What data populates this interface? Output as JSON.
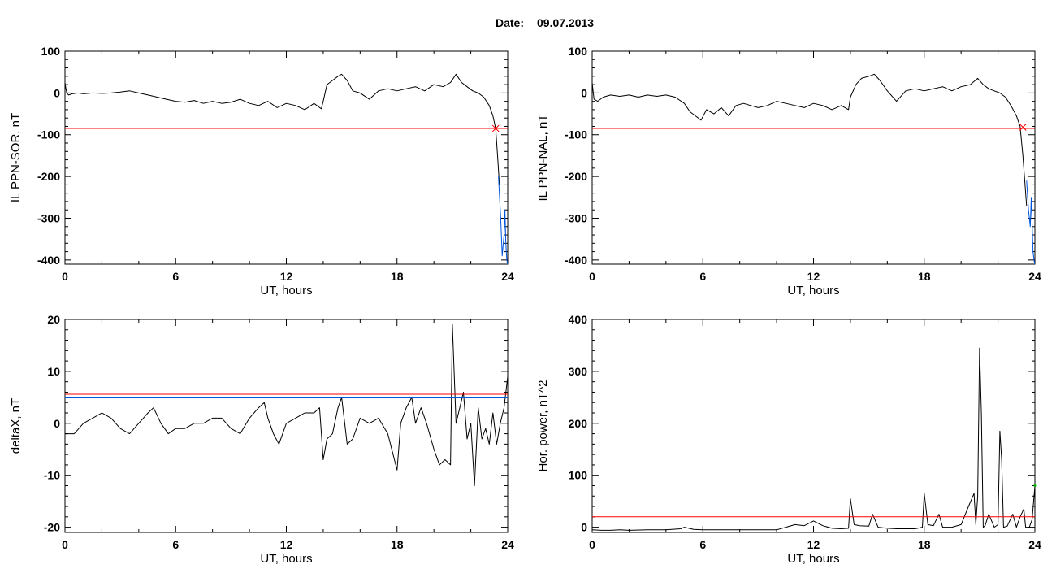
{
  "header": {
    "date_label": "Date:",
    "date_value": "09.07.2013"
  },
  "colors": {
    "signal": "#000000",
    "threshold": "#ff0000",
    "secondary": "#0055dd",
    "marker": "#ff0000",
    "point": "#00aa00"
  },
  "chart_data": [
    {
      "type": "line",
      "id": "sor",
      "xlabel": "UT, hours",
      "ylabel": "IL PPN-SOR, nT",
      "xlim": [
        0,
        24
      ],
      "ylim": [
        -410,
        100
      ],
      "xticks": [
        0,
        6,
        12,
        18,
        24
      ],
      "yticks": [
        100,
        0,
        -100,
        -200,
        -300,
        -400
      ],
      "grid": false,
      "series": [
        {
          "role": "signal",
          "color": "#000000",
          "x": [
            0,
            0.05,
            0.1,
            0.2,
            0.4,
            0.7,
            1.0,
            1.5,
            2.0,
            2.5,
            3.0,
            3.5,
            4.0,
            4.5,
            5.0,
            5.5,
            6.0,
            6.5,
            7.0,
            7.5,
            8.0,
            8.5,
            9.0,
            9.5,
            10.0,
            10.5,
            11.0,
            11.5,
            12.0,
            12.5,
            13.0,
            13.5,
            13.9,
            14.0,
            14.2,
            14.5,
            14.8,
            15.0,
            15.3,
            15.6,
            16.0,
            16.5,
            17.0,
            17.5,
            18.0,
            18.5,
            19.0,
            19.5,
            20.0,
            20.5,
            20.9,
            21.2,
            21.5,
            21.8,
            22.1,
            22.4,
            22.7,
            23.0,
            23.2,
            23.35,
            23.45,
            23.55
          ],
          "y": [
            25,
            10,
            0,
            -5,
            -2,
            0,
            -2,
            0,
            -1,
            0,
            2,
            5,
            0,
            -5,
            -10,
            -15,
            -20,
            -22,
            -18,
            -25,
            -20,
            -25,
            -22,
            -15,
            -25,
            -30,
            -20,
            -35,
            -25,
            -30,
            -40,
            -25,
            -38,
            -20,
            20,
            30,
            40,
            45,
            30,
            5,
            0,
            -15,
            5,
            10,
            5,
            10,
            15,
            5,
            20,
            15,
            25,
            45,
            25,
            15,
            5,
            0,
            -10,
            -30,
            -55,
            -85,
            -150,
            -220
          ]
        },
        {
          "role": "threshold",
          "color": "#ff0000",
          "x": [
            0,
            24
          ],
          "y": [
            -85,
            -85
          ]
        },
        {
          "role": "secondary",
          "color": "#0055dd",
          "x": [
            23.5,
            23.62,
            23.7,
            23.8,
            23.85,
            23.9,
            23.95,
            24.0
          ],
          "y": [
            -200,
            -300,
            -390,
            -340,
            -280,
            -360,
            -400,
            -410
          ]
        }
      ],
      "markers": [
        {
          "symbol": "x",
          "color": "#ff0000",
          "x": 23.35,
          "y": -85
        }
      ]
    },
    {
      "type": "line",
      "id": "nal",
      "xlabel": "UT, hours",
      "ylabel": "IL PPN-NAL, nT",
      "xlim": [
        0,
        24
      ],
      "ylim": [
        -410,
        100
      ],
      "xticks": [
        0,
        6,
        12,
        18,
        24
      ],
      "yticks": [
        100,
        0,
        -100,
        -200,
        -300,
        -400
      ],
      "grid": false,
      "series": [
        {
          "role": "signal",
          "color": "#000000",
          "x": [
            0,
            0.05,
            0.1,
            0.3,
            0.6,
            1.0,
            1.5,
            2.0,
            2.5,
            3.0,
            3.5,
            4.0,
            4.5,
            5.0,
            5.3,
            5.6,
            5.9,
            6.2,
            6.6,
            7.0,
            7.4,
            7.8,
            8.2,
            8.6,
            9.0,
            9.5,
            10.0,
            10.5,
            11.0,
            11.5,
            12.0,
            12.5,
            13.0,
            13.5,
            13.9,
            14.0,
            14.3,
            14.6,
            15.0,
            15.3,
            15.6,
            16.0,
            16.5,
            17.0,
            17.5,
            18.0,
            18.5,
            19.0,
            19.5,
            20.0,
            20.5,
            20.9,
            21.2,
            21.5,
            21.8,
            22.1,
            22.4,
            22.7,
            23.0,
            23.2,
            23.35,
            23.45,
            23.55
          ],
          "y": [
            25,
            5,
            -15,
            -20,
            -10,
            -5,
            -8,
            -5,
            -10,
            -5,
            -8,
            -5,
            -10,
            -25,
            -45,
            -55,
            -65,
            -40,
            -50,
            -35,
            -55,
            -30,
            -25,
            -30,
            -35,
            -30,
            -20,
            -25,
            -30,
            -35,
            -25,
            -30,
            -40,
            -30,
            -40,
            -10,
            20,
            35,
            40,
            45,
            30,
            5,
            -20,
            5,
            10,
            5,
            10,
            15,
            5,
            15,
            20,
            35,
            20,
            10,
            5,
            0,
            -10,
            -30,
            -55,
            -80,
            -150,
            -210,
            -270
          ]
        },
        {
          "role": "threshold",
          "color": "#ff0000",
          "x": [
            0,
            24
          ],
          "y": [
            -85,
            -85
          ]
        },
        {
          "role": "secondary",
          "color": "#0055dd",
          "x": [
            23.55,
            23.65,
            23.75,
            23.8,
            23.9,
            23.95,
            24.0
          ],
          "y": [
            -210,
            -280,
            -320,
            -250,
            -380,
            -400,
            -410
          ]
        }
      ],
      "markers": [
        {
          "symbol": "x",
          "color": "#ff0000",
          "x": 23.35,
          "y": -82
        }
      ]
    },
    {
      "type": "line",
      "id": "deltax",
      "xlabel": "UT, hours",
      "ylabel": "deltaX, nT",
      "xlim": [
        0,
        24
      ],
      "ylim": [
        -21,
        20
      ],
      "xticks": [
        0,
        6,
        12,
        18,
        24
      ],
      "yticks": [
        20,
        10,
        0,
        -10,
        -20
      ],
      "grid": false,
      "series": [
        {
          "role": "signal",
          "color": "#000000",
          "x": [
            0,
            0.5,
            1.0,
            1.5,
            2.0,
            2.5,
            3.0,
            3.5,
            4.0,
            4.5,
            4.8,
            5.2,
            5.6,
            6.0,
            6.5,
            7.0,
            7.5,
            8.0,
            8.5,
            9.0,
            9.5,
            10.0,
            10.5,
            10.8,
            11.0,
            11.3,
            11.6,
            12.0,
            12.5,
            13.0,
            13.5,
            13.8,
            14.0,
            14.2,
            14.5,
            14.8,
            15.0,
            15.3,
            15.6,
            16.0,
            16.5,
            17.0,
            17.5,
            18.0,
            18.2,
            18.5,
            18.8,
            19.0,
            19.3,
            19.6,
            20.0,
            20.3,
            20.6,
            20.9,
            21.0,
            21.2,
            21.4,
            21.6,
            21.8,
            22.0,
            22.2,
            22.4,
            22.6,
            22.8,
            23.0,
            23.2,
            23.4,
            23.6,
            23.8,
            24.0
          ],
          "y": [
            -2,
            -2,
            0,
            1,
            2,
            1,
            -1,
            -2,
            0,
            2,
            3,
            0,
            -2,
            -1,
            -1,
            0,
            0,
            1,
            1,
            -1,
            -2,
            1,
            3,
            4,
            1,
            -2,
            -4,
            0,
            1,
            2,
            2,
            3,
            -7,
            -3,
            -2,
            3,
            5,
            -4,
            -3,
            1,
            0,
            1,
            -2,
            -9,
            0,
            3,
            5,
            0,
            3,
            0,
            -5,
            -8,
            -7,
            -8,
            19,
            0,
            3,
            6,
            -3,
            0,
            -12,
            3,
            -3,
            -1,
            -4,
            2,
            -4,
            0,
            3,
            9
          ]
        },
        {
          "role": "threshold",
          "color": "#ff0000",
          "x": [
            0,
            24
          ],
          "y": [
            5.6,
            5.6
          ]
        },
        {
          "role": "secondary",
          "color": "#0055dd",
          "x": [
            0,
            24
          ],
          "y": [
            4.9,
            4.9
          ]
        }
      ],
      "markers": []
    },
    {
      "type": "line",
      "id": "power",
      "xlabel": "UT, hours",
      "ylabel": "Hor. power, nT^2",
      "xlim": [
        0,
        24
      ],
      "ylim": [
        -10,
        400
      ],
      "xticks": [
        0,
        6,
        12,
        18,
        24
      ],
      "yticks": [
        400,
        300,
        200,
        100,
        0
      ],
      "grid": false,
      "series": [
        {
          "role": "signal",
          "color": "#000000",
          "x": [
            0,
            0.5,
            1.0,
            1.5,
            2.0,
            3.0,
            4.0,
            4.8,
            5.0,
            5.5,
            6.0,
            7.0,
            8.0,
            9.0,
            10.0,
            10.5,
            11.0,
            11.5,
            12.0,
            12.5,
            13.0,
            13.5,
            13.9,
            14.0,
            14.2,
            14.5,
            15.0,
            15.2,
            15.5,
            16.0,
            16.5,
            17.0,
            17.5,
            17.9,
            18.0,
            18.2,
            18.5,
            18.8,
            19.0,
            19.5,
            20.0,
            20.4,
            20.7,
            20.8,
            20.9,
            21.0,
            21.1,
            21.2,
            21.3,
            21.5,
            21.8,
            22.0,
            22.1,
            22.2,
            22.3,
            22.5,
            22.8,
            23.0,
            23.2,
            23.4,
            23.5,
            23.7,
            23.85,
            24.0
          ],
          "y": [
            -5,
            -6,
            -6,
            -5,
            -6,
            -5,
            -5,
            -3,
            0,
            -4,
            -5,
            -5,
            -5,
            -5,
            -5,
            0,
            5,
            3,
            12,
            3,
            -2,
            -3,
            -2,
            55,
            5,
            3,
            2,
            25,
            0,
            -2,
            -3,
            -3,
            -3,
            0,
            65,
            5,
            3,
            25,
            0,
            0,
            5,
            40,
            65,
            5,
            60,
            345,
            220,
            0,
            3,
            25,
            0,
            5,
            185,
            130,
            0,
            2,
            25,
            0,
            20,
            35,
            0,
            0,
            15,
            80
          ]
        },
        {
          "role": "threshold",
          "color": "#ff0000",
          "x": [
            0,
            24
          ],
          "y": [
            20,
            20
          ]
        }
      ],
      "markers": [
        {
          "symbol": "dot",
          "color": "#00aa00",
          "x": 24,
          "y": 80
        }
      ]
    }
  ]
}
